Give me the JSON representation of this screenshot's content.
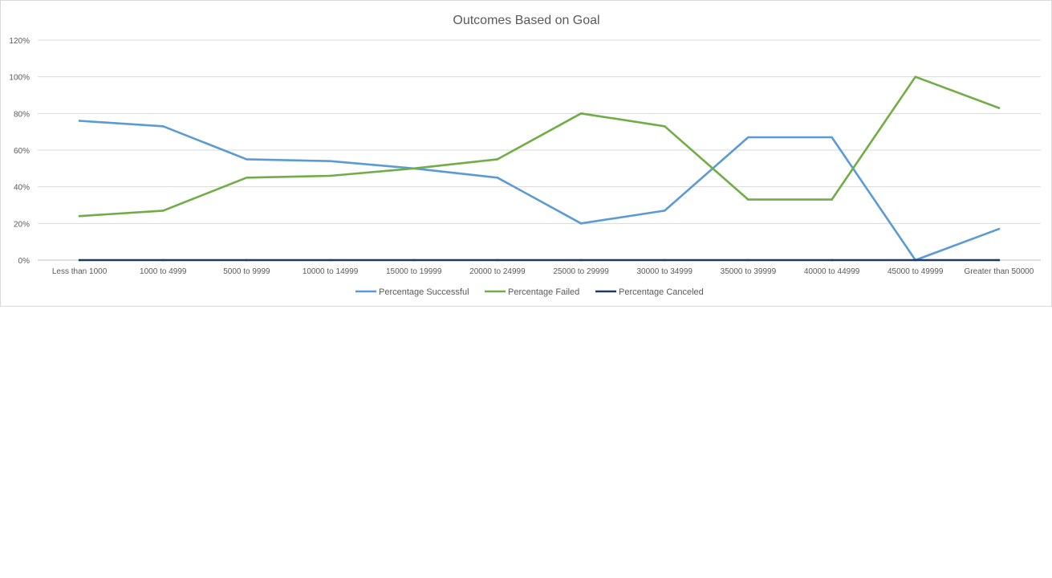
{
  "chart_data": {
    "type": "line",
    "title": "Outcomes Based on Goal",
    "xlabel": "",
    "ylabel": "",
    "categories": [
      "Less than 1000",
      "1000 to 4999",
      "5000 to 9999",
      "10000 to 14999",
      "15000 to 19999",
      "20000 to 24999",
      "25000 to 29999",
      "30000 to 34999",
      "35000 to 39999",
      "40000 to 44999",
      "45000 to 49999",
      "Greater than 50000"
    ],
    "ylim": [
      0,
      120
    ],
    "yticks": [
      0,
      20,
      40,
      60,
      80,
      100,
      120
    ],
    "ytick_labels": [
      "0%",
      "20%",
      "40%",
      "60%",
      "80%",
      "100%",
      "120%"
    ],
    "grid": true,
    "legend_position": "bottom",
    "series": [
      {
        "name": "Percentage Successful",
        "color": "#5b9bd5",
        "values": [
          76,
          73,
          55,
          54,
          50,
          45,
          20,
          27,
          67,
          67,
          0,
          17
        ]
      },
      {
        "name": "Percentage Failed",
        "color": "#70ad47",
        "values": [
          24,
          27,
          45,
          46,
          50,
          55,
          80,
          73,
          33,
          33,
          100,
          83
        ]
      },
      {
        "name": "Percentage Canceled",
        "color": "#1f3864",
        "values": [
          0,
          0,
          0,
          0,
          0,
          0,
          0,
          0,
          0,
          0,
          0,
          0
        ]
      }
    ]
  }
}
